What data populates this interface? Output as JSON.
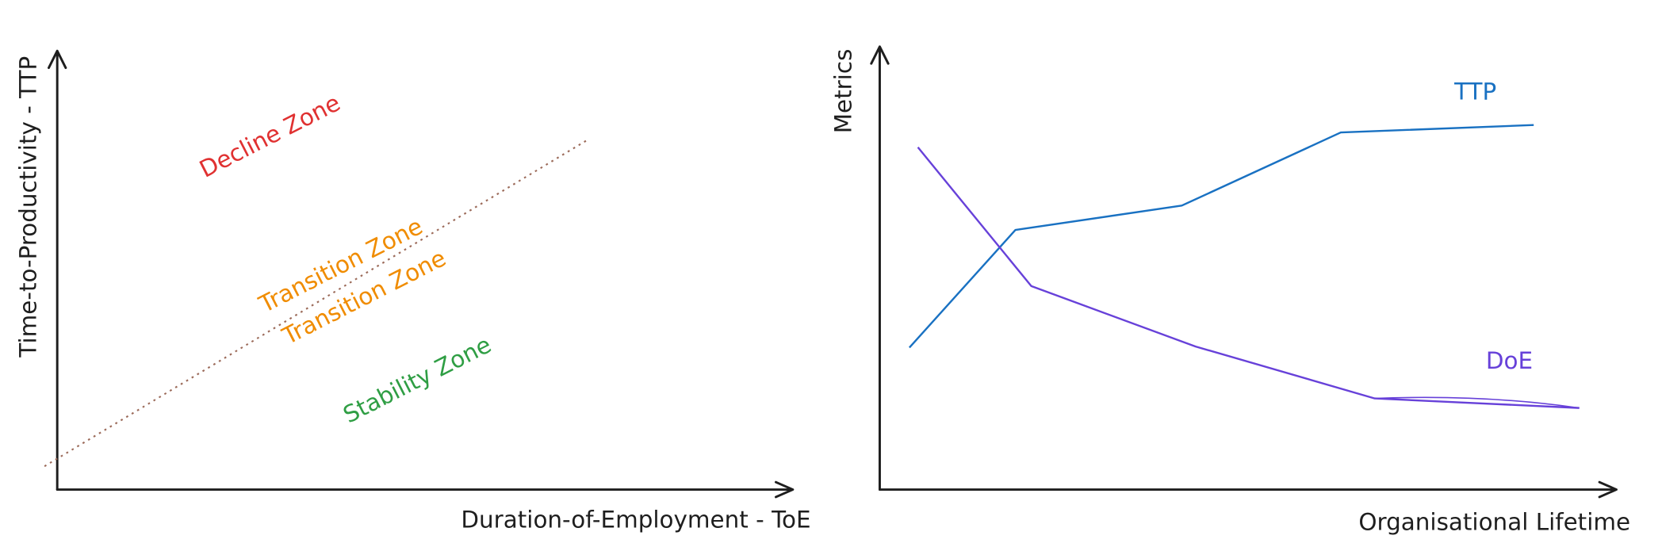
{
  "left_diagram": {
    "y_axis_label": "Time-to-Productivity - TTP",
    "x_axis_label": "Duration-of-Employment - ToE",
    "zones": [
      "Decline Zone",
      "Transition Zone",
      "Transition Zone",
      "Stability Zone"
    ]
  },
  "right_diagram": {
    "y_axis_label": "Metrics",
    "x_axis_label": "Organisational Lifetime",
    "line_labels": [
      "TTP",
      "DoE"
    ]
  }
}
